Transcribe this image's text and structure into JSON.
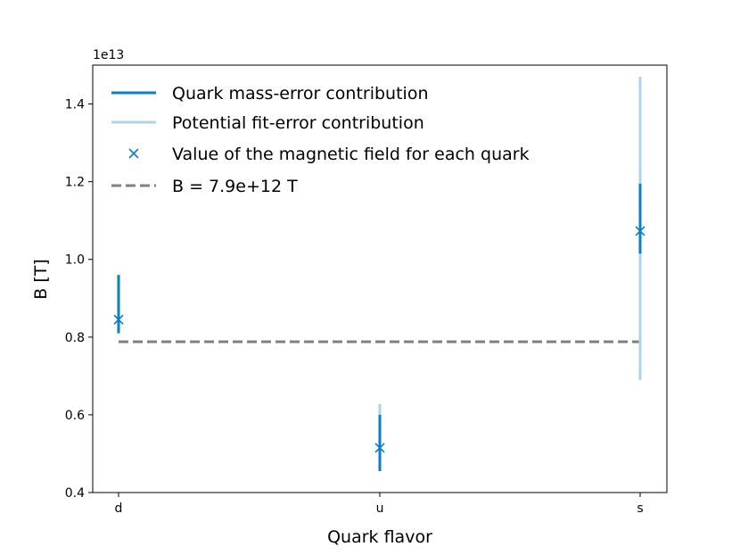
{
  "chart_data": {
    "type": "scatter",
    "xlabel": "Quark flavor",
    "ylabel": "B [T]",
    "y_scale_label": "1e13",
    "categories": [
      "d",
      "u",
      "s"
    ],
    "ylim": [
      0.4,
      1.5
    ],
    "yticks": [
      "0.4",
      "0.6",
      "0.8",
      "1.0",
      "1.2",
      "1.4"
    ],
    "grid": false,
    "legend_position": "top-left",
    "series": [
      {
        "name": "Value of the magnetic field for each quark",
        "kind": "marker",
        "marker": "x",
        "color": "#0a7fc6",
        "values": [
          0.845,
          0.515,
          1.073
        ]
      },
      {
        "name": "Quark mass-error contribution",
        "kind": "errorbar",
        "color": "#0a7fc6",
        "low": [
          0.81,
          0.455,
          1.015
        ],
        "high": [
          0.96,
          0.6,
          1.195
        ]
      },
      {
        "name": "Potential fit-error contribution",
        "kind": "errorbar",
        "color": "#aed3ee",
        "low": [
          0.83,
          0.47,
          0.69
        ],
        "high": [
          0.92,
          0.628,
          1.47
        ]
      },
      {
        "name": "B = 7.9e+12 T",
        "kind": "hline",
        "color": "#808080",
        "dash": "dashed",
        "value": 0.788
      }
    ]
  }
}
